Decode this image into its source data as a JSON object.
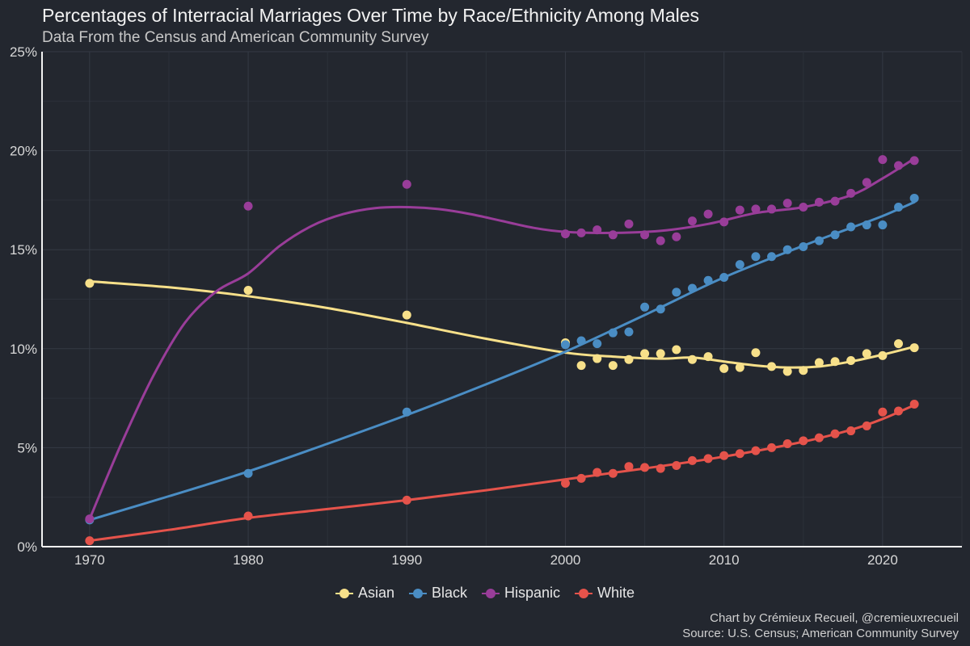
{
  "header": {
    "title": "Percentages of Interracial Marriages Over Time by Race/Ethnicity Among Males",
    "subtitle": "Data From the Census and American Community Survey"
  },
  "caption": {
    "line1": "Chart by Crémieux Recueil, @cremieuxrecueil",
    "line2": "Source: U.S. Census; American Community Survey"
  },
  "chart_data": {
    "type": "scatter",
    "title": "Percentages of Interracial Marriages Over Time by Race/Ethnicity Among Males",
    "subtitle": "Data From the Census and American Community Survey",
    "xlabel": "",
    "ylabel": "",
    "xlim": [
      1967,
      2025
    ],
    "ylim": [
      0,
      25
    ],
    "x_ticks": [
      1970,
      1980,
      1990,
      2000,
      2010,
      2020
    ],
    "y_ticks": [
      0,
      5,
      10,
      15,
      20,
      25
    ],
    "y_tick_labels": [
      "0%",
      "5%",
      "10%",
      "15%",
      "20%",
      "25%"
    ],
    "grid": true,
    "legend_position": "bottom",
    "smoothed_trend_lines": true,
    "series": [
      {
        "name": "Asian",
        "color": "#f7e08a",
        "points": [
          [
            1970,
            13.3
          ],
          [
            1980,
            12.95
          ],
          [
            1990,
            11.7
          ],
          [
            2000,
            10.3
          ],
          [
            2001,
            9.15
          ],
          [
            2002,
            9.5
          ],
          [
            2003,
            9.15
          ],
          [
            2004,
            9.45
          ],
          [
            2005,
            9.75
          ],
          [
            2006,
            9.75
          ],
          [
            2007,
            9.95
          ],
          [
            2008,
            9.45
          ],
          [
            2009,
            9.6
          ],
          [
            2010,
            9.0
          ],
          [
            2011,
            9.05
          ],
          [
            2012,
            9.8
          ],
          [
            2013,
            9.1
          ],
          [
            2014,
            8.85
          ],
          [
            2015,
            8.9
          ],
          [
            2016,
            9.3
          ],
          [
            2017,
            9.35
          ],
          [
            2018,
            9.4
          ],
          [
            2019,
            9.75
          ],
          [
            2020,
            9.65
          ],
          [
            2021,
            10.25
          ],
          [
            2022,
            10.05
          ]
        ],
        "trend": [
          [
            1970,
            13.4
          ],
          [
            1975,
            13.1
          ],
          [
            1980,
            12.65
          ],
          [
            1985,
            12.05
          ],
          [
            1990,
            11.3
          ],
          [
            1995,
            10.5
          ],
          [
            2000,
            9.8
          ],
          [
            2003,
            9.6
          ],
          [
            2006,
            9.5
          ],
          [
            2008,
            9.55
          ],
          [
            2010,
            9.35
          ],
          [
            2012,
            9.15
          ],
          [
            2014,
            9.05
          ],
          [
            2016,
            9.1
          ],
          [
            2018,
            9.35
          ],
          [
            2020,
            9.7
          ],
          [
            2022,
            10.1
          ]
        ]
      },
      {
        "name": "Black",
        "color": "#4a8dc4",
        "points": [
          [
            1970,
            1.35
          ],
          [
            1980,
            3.7
          ],
          [
            1990,
            6.8
          ],
          [
            2000,
            10.2
          ],
          [
            2001,
            10.4
          ],
          [
            2002,
            10.25
          ],
          [
            2003,
            10.8
          ],
          [
            2004,
            10.85
          ],
          [
            2005,
            12.1
          ],
          [
            2006,
            12.0
          ],
          [
            2007,
            12.85
          ],
          [
            2008,
            13.05
          ],
          [
            2009,
            13.45
          ],
          [
            2010,
            13.6
          ],
          [
            2011,
            14.25
          ],
          [
            2012,
            14.65
          ],
          [
            2013,
            14.65
          ],
          [
            2014,
            15.0
          ],
          [
            2015,
            15.15
          ],
          [
            2016,
            15.45
          ],
          [
            2017,
            15.75
          ],
          [
            2018,
            16.15
          ],
          [
            2019,
            16.25
          ],
          [
            2020,
            16.25
          ],
          [
            2021,
            17.15
          ],
          [
            2022,
            17.6
          ]
        ],
        "trend": [
          [
            1970,
            1.35
          ],
          [
            1975,
            2.55
          ],
          [
            1980,
            3.8
          ],
          [
            1985,
            5.2
          ],
          [
            1990,
            6.65
          ],
          [
            1995,
            8.2
          ],
          [
            2000,
            9.85
          ],
          [
            2005,
            11.7
          ],
          [
            2010,
            13.6
          ],
          [
            2015,
            15.2
          ],
          [
            2018,
            16.1
          ],
          [
            2020,
            16.7
          ],
          [
            2022,
            17.4
          ]
        ]
      },
      {
        "name": "Hispanic",
        "color": "#993d99",
        "points": [
          [
            1970,
            1.4
          ],
          [
            1980,
            17.2
          ],
          [
            1990,
            18.3
          ],
          [
            2000,
            15.8
          ],
          [
            2001,
            15.85
          ],
          [
            2002,
            16.0
          ],
          [
            2003,
            15.75
          ],
          [
            2004,
            16.3
          ],
          [
            2005,
            15.75
          ],
          [
            2006,
            15.45
          ],
          [
            2007,
            15.65
          ],
          [
            2008,
            16.45
          ],
          [
            2009,
            16.8
          ],
          [
            2010,
            16.4
          ],
          [
            2011,
            17.0
          ],
          [
            2012,
            17.05
          ],
          [
            2013,
            17.05
          ],
          [
            2014,
            17.35
          ],
          [
            2015,
            17.15
          ],
          [
            2016,
            17.4
          ],
          [
            2017,
            17.45
          ],
          [
            2018,
            17.85
          ],
          [
            2019,
            18.4
          ],
          [
            2020,
            19.55
          ],
          [
            2021,
            19.25
          ],
          [
            2022,
            19.5
          ]
        ],
        "trend": [
          [
            1970,
            1.4
          ],
          [
            1972,
            5.2
          ],
          [
            1974,
            8.6
          ],
          [
            1976,
            11.3
          ],
          [
            1978,
            12.9
          ],
          [
            1980,
            13.8
          ],
          [
            1982,
            15.2
          ],
          [
            1984,
            16.2
          ],
          [
            1986,
            16.8
          ],
          [
            1988,
            17.1
          ],
          [
            1990,
            17.15
          ],
          [
            1992,
            17.05
          ],
          [
            1994,
            16.8
          ],
          [
            1996,
            16.45
          ],
          [
            1998,
            16.1
          ],
          [
            2000,
            15.9
          ],
          [
            2003,
            15.85
          ],
          [
            2006,
            15.95
          ],
          [
            2009,
            16.3
          ],
          [
            2012,
            16.85
          ],
          [
            2015,
            17.15
          ],
          [
            2018,
            17.75
          ],
          [
            2020,
            18.6
          ],
          [
            2022,
            19.6
          ]
        ]
      },
      {
        "name": "White",
        "color": "#e5534b",
        "points": [
          [
            1970,
            0.3
          ],
          [
            1980,
            1.55
          ],
          [
            1990,
            2.35
          ],
          [
            2000,
            3.2
          ],
          [
            2001,
            3.45
          ],
          [
            2002,
            3.75
          ],
          [
            2003,
            3.7
          ],
          [
            2004,
            4.05
          ],
          [
            2005,
            4.0
          ],
          [
            2006,
            3.95
          ],
          [
            2007,
            4.1
          ],
          [
            2008,
            4.35
          ],
          [
            2009,
            4.45
          ],
          [
            2010,
            4.6
          ],
          [
            2011,
            4.7
          ],
          [
            2012,
            4.85
          ],
          [
            2013,
            5.0
          ],
          [
            2014,
            5.2
          ],
          [
            2015,
            5.35
          ],
          [
            2016,
            5.5
          ],
          [
            2017,
            5.7
          ],
          [
            2018,
            5.85
          ],
          [
            2019,
            6.1
          ],
          [
            2020,
            6.8
          ],
          [
            2021,
            6.85
          ],
          [
            2022,
            7.2
          ]
        ],
        "trend": [
          [
            1970,
            0.3
          ],
          [
            1975,
            0.85
          ],
          [
            1980,
            1.45
          ],
          [
            1985,
            1.9
          ],
          [
            1990,
            2.35
          ],
          [
            1995,
            2.85
          ],
          [
            2000,
            3.4
          ],
          [
            2005,
            3.95
          ],
          [
            2010,
            4.55
          ],
          [
            2015,
            5.3
          ],
          [
            2018,
            5.9
          ],
          [
            2020,
            6.45
          ],
          [
            2022,
            7.15
          ]
        ]
      }
    ]
  }
}
